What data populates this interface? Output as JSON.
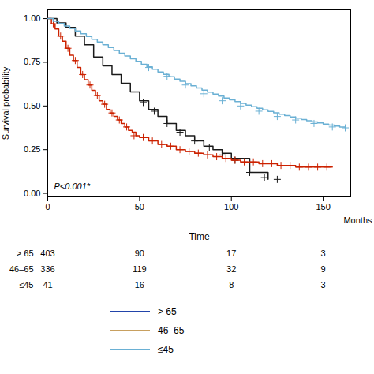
{
  "chart_data": {
    "type": "step",
    "ylabel": "Survival probability",
    "xlabel": "Months",
    "annotation": "P<0.001*",
    "xlim": [
      0,
      165
    ],
    "ylim": [
      -0.02,
      1.05
    ],
    "xticks": [
      0,
      50,
      100,
      150
    ],
    "yticks": [
      {
        "value": 0,
        "label": "0.00"
      },
      {
        "value": 0.25,
        "label": "0.25"
      },
      {
        "value": 0.5,
        "label": "0.50"
      },
      {
        "value": 0.75,
        "label": "0.75"
      },
      {
        "value": 1,
        "label": "1.00"
      }
    ],
    "grid": false,
    "series": [
      {
        "color": "#1a1a1a",
        "marker": "plus",
        "x": [
          0,
          5,
          10,
          15,
          20,
          25,
          30,
          35,
          40,
          45,
          50,
          55,
          60,
          65,
          70,
          75,
          80,
          85,
          90,
          95,
          100,
          110,
          120
        ],
        "values": [
          1.0,
          0.975,
          0.95,
          0.9,
          0.85,
          0.78,
          0.73,
          0.68,
          0.63,
          0.58,
          0.53,
          0.48,
          0.44,
          0.4,
          0.36,
          0.33,
          0.3,
          0.27,
          0.25,
          0.23,
          0.2,
          0.12,
          0.08
        ],
        "censor_x": [
          52,
          58,
          65,
          72,
          80,
          88,
          95,
          102,
          110,
          118,
          125
        ],
        "censor_y": [
          0.52,
          0.47,
          0.4,
          0.35,
          0.3,
          0.26,
          0.22,
          0.19,
          0.12,
          0.09,
          0.08
        ]
      },
      {
        "color": "#CC2200",
        "marker": "plus",
        "x": [
          0,
          2,
          4,
          6,
          8,
          10,
          12,
          14,
          16,
          18,
          20,
          22,
          24,
          26,
          28,
          30,
          32,
          34,
          36,
          38,
          40,
          42,
          44,
          46,
          48,
          50,
          55,
          60,
          65,
          70,
          75,
          80,
          85,
          90,
          95,
          100,
          105,
          110,
          115,
          120,
          125,
          130,
          135,
          140,
          145,
          150,
          155
        ],
        "values": [
          1.0,
          0.97,
          0.94,
          0.9,
          0.87,
          0.83,
          0.79,
          0.76,
          0.72,
          0.68,
          0.65,
          0.62,
          0.59,
          0.56,
          0.53,
          0.51,
          0.48,
          0.46,
          0.44,
          0.42,
          0.4,
          0.38,
          0.36,
          0.35,
          0.33,
          0.32,
          0.3,
          0.28,
          0.27,
          0.25,
          0.24,
          0.23,
          0.22,
          0.21,
          0.2,
          0.19,
          0.18,
          0.18,
          0.17,
          0.17,
          0.16,
          0.16,
          0.15,
          0.15,
          0.15,
          0.15,
          0.15
        ],
        "censor_x": [
          3,
          7,
          11,
          15,
          19,
          23,
          27,
          31,
          35,
          39,
          43,
          47,
          52,
          57,
          62,
          67,
          72,
          77,
          82,
          87,
          92,
          97,
          102,
          107,
          112,
          117,
          122,
          127,
          132,
          137,
          142,
          147,
          152
        ],
        "censor_y": [
          0.97,
          0.9,
          0.83,
          0.76,
          0.68,
          0.62,
          0.56,
          0.51,
          0.46,
          0.42,
          0.38,
          0.33,
          0.32,
          0.3,
          0.28,
          0.27,
          0.25,
          0.24,
          0.23,
          0.22,
          0.21,
          0.2,
          0.19,
          0.18,
          0.18,
          0.17,
          0.17,
          0.16,
          0.16,
          0.15,
          0.15,
          0.15,
          0.15
        ]
      },
      {
        "color": "#6ab0d4",
        "marker": "plus",
        "x": [
          0,
          3,
          6,
          9,
          12,
          15,
          18,
          21,
          24,
          27,
          30,
          33,
          36,
          39,
          42,
          45,
          48,
          51,
          54,
          57,
          60,
          63,
          66,
          69,
          72,
          75,
          78,
          81,
          84,
          87,
          90,
          93,
          96,
          99,
          102,
          105,
          108,
          111,
          114,
          117,
          120,
          123,
          126,
          129,
          132,
          135,
          138,
          141,
          144,
          147,
          150,
          153,
          156,
          159,
          162
        ],
        "values": [
          1.0,
          0.985,
          0.972,
          0.958,
          0.944,
          0.929,
          0.913,
          0.898,
          0.882,
          0.866,
          0.85,
          0.834,
          0.818,
          0.802,
          0.786,
          0.77,
          0.755,
          0.739,
          0.724,
          0.71,
          0.695,
          0.681,
          0.667,
          0.654,
          0.641,
          0.628,
          0.615,
          0.603,
          0.591,
          0.579,
          0.568,
          0.557,
          0.546,
          0.535,
          0.525,
          0.515,
          0.505,
          0.496,
          0.487,
          0.478,
          0.469,
          0.461,
          0.453,
          0.445,
          0.437,
          0.43,
          0.423,
          0.416,
          0.409,
          0.403,
          0.397,
          0.391,
          0.385,
          0.38,
          0.375
        ],
        "censor_x": [
          55,
          65,
          75,
          85,
          95,
          105,
          115,
          125,
          135,
          145,
          155,
          162
        ],
        "censor_y": [
          0.72,
          0.67,
          0.62,
          0.57,
          0.53,
          0.5,
          0.47,
          0.44,
          0.42,
          0.4,
          0.38,
          0.375
        ]
      }
    ],
    "risk_table": {
      "title": "Time",
      "time_points": [
        0,
        50,
        100,
        150
      ],
      "rows": [
        {
          "label": "> 65",
          "values": [
            403,
            90,
            17,
            3
          ]
        },
        {
          "label": "46–65",
          "values": [
            336,
            119,
            32,
            9
          ]
        },
        {
          "label": "≤45",
          "values": [
            41,
            16,
            8,
            3
          ]
        }
      ]
    },
    "legend_entries": [
      {
        "label": "> 65",
        "color": "#2244aa"
      },
      {
        "label": "46–65",
        "color": "#c8a060"
      },
      {
        "label": "≤45",
        "color": "#6ab0d4"
      }
    ]
  }
}
